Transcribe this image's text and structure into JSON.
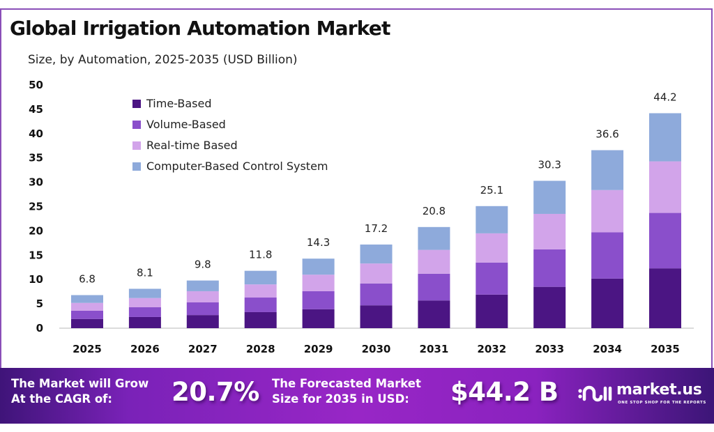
{
  "chart_data": {
    "type": "bar",
    "stacked": true,
    "title": "Global Irrigation Automation Market",
    "subtitle": "Size, by Automation, 2025-2035 (USD Billion)",
    "xlabel": "",
    "ylabel": "",
    "ylim": [
      0,
      50
    ],
    "yticks": [
      0,
      5,
      10,
      15,
      20,
      25,
      30,
      35,
      40,
      45,
      50
    ],
    "grid": false,
    "legend_position": "top-left",
    "categories": [
      "2025",
      "2026",
      "2027",
      "2028",
      "2029",
      "2030",
      "2031",
      "2032",
      "2033",
      "2034",
      "2035"
    ],
    "series": [
      {
        "name": "Time-Based",
        "color": "#4b1583",
        "values": [
          1.9,
          2.3,
          2.7,
          3.3,
          3.9,
          4.7,
          5.7,
          6.9,
          8.5,
          10.2,
          12.3
        ]
      },
      {
        "name": "Volume-Based",
        "color": "#8a4fcb",
        "values": [
          1.7,
          2.0,
          2.6,
          3.0,
          3.7,
          4.5,
          5.5,
          6.6,
          7.7,
          9.5,
          11.4
        ]
      },
      {
        "name": "Real-time Based",
        "color": "#d2a4ea",
        "values": [
          1.6,
          1.9,
          2.3,
          2.7,
          3.4,
          4.1,
          4.9,
          6.0,
          7.3,
          8.7,
          10.6
        ]
      },
      {
        "name": "Computer-Based Control System",
        "color": "#8eaadb",
        "values": [
          1.6,
          1.9,
          2.2,
          2.8,
          3.3,
          3.9,
          4.7,
          5.6,
          6.8,
          8.2,
          9.9
        ]
      }
    ],
    "totals": [
      6.8,
      8.1,
      9.8,
      11.8,
      14.3,
      17.2,
      20.8,
      25.1,
      30.3,
      36.6,
      44.2
    ],
    "total_labels": [
      "6.8",
      "8.1",
      "9.8",
      "11.8",
      "14.3",
      "17.2",
      "20.8",
      "25.1",
      "30.3",
      "36.6",
      "44.2"
    ]
  },
  "footer": {
    "cagr_text_line1": "The Market will Grow",
    "cagr_text_line2": "At the CAGR of:",
    "cagr_value": "20.7%",
    "forecast_text_line1": "The Forecasted Market",
    "forecast_text_line2": "Size for 2035 in USD:",
    "forecast_value": "$44.2 B",
    "brand_name": "market.us",
    "brand_tagline": "ONE STOP SHOP FOR THE REPORTS"
  },
  "colors": {
    "frame_border": "#8a4fb8",
    "footer_start": "#3f1479",
    "footer_mid": "#9826c6"
  }
}
